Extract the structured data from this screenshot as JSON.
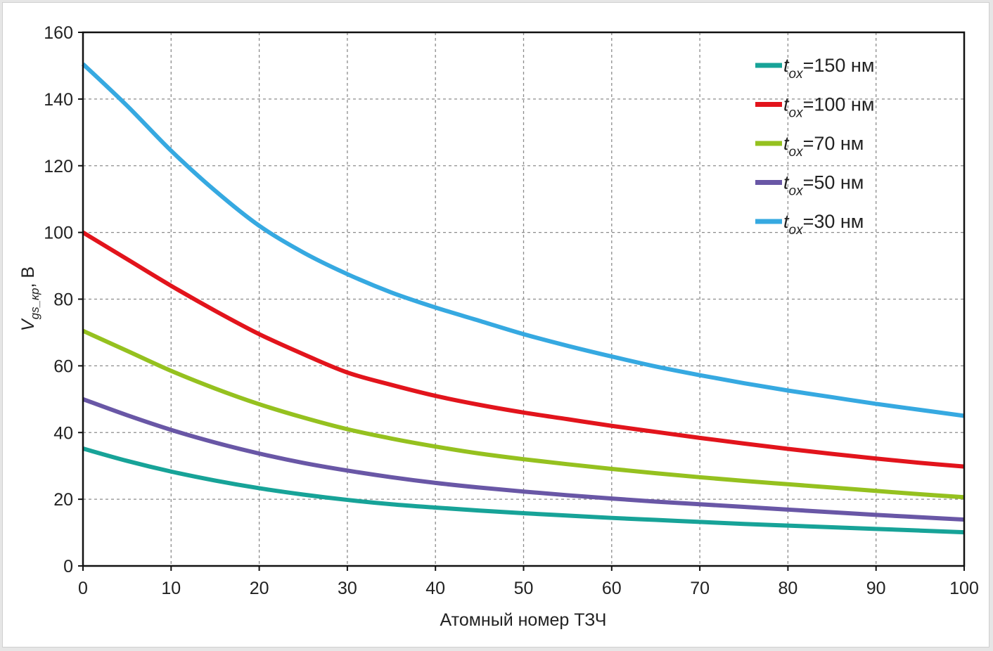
{
  "chart_data": {
    "type": "line",
    "xlabel": "Атомный номер ТЗЧ",
    "ylabel": {
      "main": "V",
      "sub": "gs_кр",
      "unit": ", В"
    },
    "xlim": [
      0,
      100
    ],
    "ylim": [
      0,
      160
    ],
    "xticks": [
      0,
      10,
      20,
      30,
      40,
      50,
      60,
      70,
      80,
      90,
      100
    ],
    "yticks": [
      0,
      20,
      40,
      60,
      80,
      100,
      120,
      140,
      160
    ],
    "grid": true,
    "legend_position": "top-right",
    "x": [
      0,
      5,
      10,
      15,
      20,
      25,
      30,
      35,
      40,
      45,
      50,
      55,
      60,
      65,
      70,
      75,
      80,
      85,
      90,
      95,
      100
    ],
    "series": [
      {
        "name": "150 нм",
        "label": {
          "t": "t",
          "sub": "ox",
          "rest": "=150 нм"
        },
        "color": "#17a398",
        "values": [
          35.2,
          31.5,
          28.3,
          25.6,
          23.3,
          21.4,
          19.8,
          18.5,
          17.5,
          16.6,
          15.8,
          15.1,
          14.4,
          13.8,
          13.2,
          12.6,
          12.1,
          11.6,
          11.1,
          10.6,
          10.1
        ]
      },
      {
        "name": "100 нм",
        "label": {
          "t": "t",
          "sub": "ox",
          "rest": "=100 нм"
        },
        "color": "#e2141c",
        "values": [
          100,
          92,
          84,
          76.5,
          69.5,
          63.5,
          58,
          54.3,
          51,
          48.3,
          46,
          44,
          42,
          40.2,
          38.4,
          36.7,
          35.1,
          33.6,
          32.2,
          30.9,
          29.8
        ]
      },
      {
        "name": "70 нм",
        "label": {
          "t": "t",
          "sub": "ox",
          "rest": "=70 нм"
        },
        "color": "#95c11f",
        "values": [
          70.5,
          64.5,
          58.5,
          53.2,
          48.5,
          44.5,
          41,
          38.2,
          35.8,
          33.7,
          32,
          30.5,
          29.1,
          27.8,
          26.6,
          25.5,
          24.5,
          23.5,
          22.5,
          21.5,
          20.6
        ]
      },
      {
        "name": "50 нм",
        "label": {
          "t": "t",
          "sub": "ox",
          "rest": "=50 нм"
        },
        "color": "#6957a6",
        "values": [
          50,
          45.2,
          40.8,
          37,
          33.7,
          30.9,
          28.6,
          26.6,
          24.9,
          23.5,
          22.3,
          21.2,
          20.2,
          19.3,
          18.5,
          17.7,
          16.9,
          16.1,
          15.3,
          14.6,
          13.9
        ]
      },
      {
        "name": "30 нм",
        "label": {
          "t": "t",
          "sub": "ox",
          "rest": "=30 нм"
        },
        "color": "#36a9e1",
        "values": [
          150.5,
          138,
          124.5,
          112.5,
          102,
          94,
          87.5,
          82,
          77.5,
          73.5,
          69.5,
          66,
          62.8,
          59.8,
          57.2,
          54.8,
          52.6,
          50.6,
          48.6,
          46.8,
          45
        ]
      }
    ]
  }
}
